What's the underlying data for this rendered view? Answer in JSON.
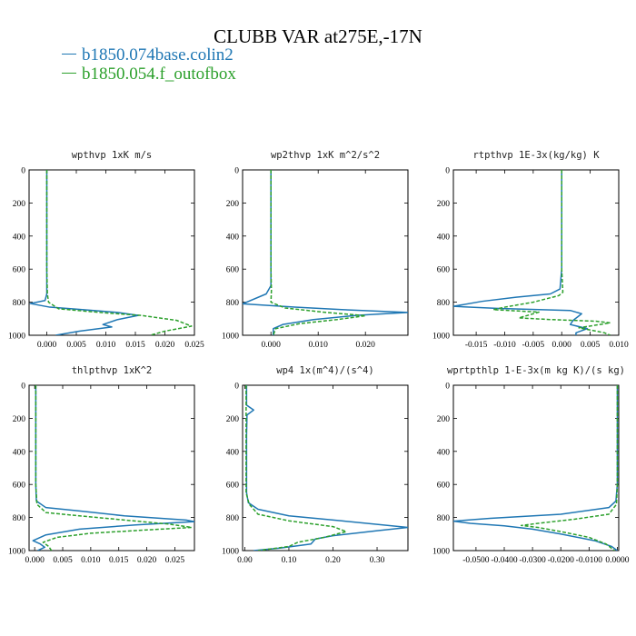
{
  "title": "CLUBB VAR at275E,-17N",
  "legend": [
    {
      "label": "b1850.074base.colin2",
      "color": "#1f77b4"
    },
    {
      "label": "b1850.054.f_outofbox",
      "color": "#2ca02c"
    }
  ],
  "chart_data": [
    {
      "type": "line",
      "title": "wpthvp   1xK m/s",
      "xlim": [
        -0.003,
        0.025
      ],
      "ylim": [
        1000,
        0
      ],
      "xticks": [
        "0.000",
        "0.005",
        "0.010",
        "0.015",
        "0.020",
        "0.025"
      ],
      "xtick_values": [
        0,
        0.005,
        0.01,
        0.015,
        0.02,
        0.025
      ],
      "yticks": [
        "0",
        "200",
        "400",
        "600",
        "800",
        "1000"
      ],
      "series": [
        {
          "name": "b1850.074base.colin2",
          "color": "#1f77b4",
          "dash": "",
          "points": [
            [
              0.0,
              0
            ],
            [
              0.0,
              200
            ],
            [
              0.0,
              400
            ],
            [
              0.0,
              600
            ],
            [
              0.0,
              750
            ],
            [
              -0.0003,
              790
            ],
            [
              -0.0028,
              808
            ],
            [
              0.0005,
              830
            ],
            [
              0.006,
              845
            ],
            [
              0.012,
              862
            ],
            [
              0.0155,
              880
            ],
            [
              0.012,
              905
            ],
            [
              0.0095,
              935
            ],
            [
              0.011,
              950
            ],
            [
              0.0055,
              975
            ],
            [
              0.0015,
              1000
            ]
          ]
        },
        {
          "name": "b1850.054.f_outofbox",
          "color": "#2ca02c",
          "dash": "4,2",
          "points": [
            [
              0.0,
              0
            ],
            [
              0.0,
              200
            ],
            [
              0.0,
              400
            ],
            [
              0.0,
              600
            ],
            [
              0.0001,
              750
            ],
            [
              0.0003,
              800
            ],
            [
              0.002,
              840
            ],
            [
              0.01,
              865
            ],
            [
              0.016,
              880
            ],
            [
              0.019,
              895
            ],
            [
              0.022,
              910
            ],
            [
              0.0245,
              945
            ],
            [
              0.02,
              975
            ],
            [
              0.0175,
              1000
            ]
          ]
        }
      ]
    },
    {
      "type": "line",
      "title": "wp2thvp   1xK m^2/s^2",
      "xlim": [
        -0.006,
        0.029
      ],
      "ylim": [
        1000,
        0
      ],
      "xticks": [
        "0.000",
        "0.010",
        "0.020"
      ],
      "xtick_values": [
        0,
        0.01,
        0.02
      ],
      "yticks": [
        "0",
        "200",
        "400",
        "600",
        "800",
        "1000"
      ],
      "series": [
        {
          "name": "b1850.074base.colin2",
          "color": "#1f77b4",
          "dash": "",
          "points": [
            [
              0.0,
              0
            ],
            [
              0.0,
              200
            ],
            [
              0.0,
              400
            ],
            [
              0.0,
              600
            ],
            [
              0.0,
              700
            ],
            [
              -0.001,
              750
            ],
            [
              -0.006,
              810
            ],
            [
              0.005,
              830
            ],
            [
              0.015,
              845
            ],
            [
              0.029,
              862
            ],
            [
              0.018,
              880
            ],
            [
              0.009,
              905
            ],
            [
              0.0025,
              935
            ],
            [
              0.0005,
              960
            ],
            [
              0.0005,
              1000
            ]
          ]
        },
        {
          "name": "b1850.054.f_outofbox",
          "color": "#2ca02c",
          "dash": "4,2",
          "points": [
            [
              0.0,
              0
            ],
            [
              0.0,
              200
            ],
            [
              0.0,
              400
            ],
            [
              0.0,
              600
            ],
            [
              0.0001,
              730
            ],
            [
              0.0,
              800
            ],
            [
              0.003,
              835
            ],
            [
              0.011,
              860
            ],
            [
              0.02,
              882
            ],
            [
              0.014,
              905
            ],
            [
              0.006,
              930
            ],
            [
              0.001,
              960
            ],
            [
              0.0005,
              1000
            ]
          ]
        }
      ]
    },
    {
      "type": "line",
      "title": "rtpthvp   1E-3x(kg/kg) K",
      "xlim": [
        -0.019,
        0.01
      ],
      "ylim": [
        1000,
        0
      ],
      "xticks": [
        "-0.015",
        "-0.010",
        "-0.005",
        "0.000",
        "0.005",
        "0.010"
      ],
      "xtick_values": [
        -0.015,
        -0.01,
        -0.005,
        0.0,
        0.005,
        0.01
      ],
      "yticks": [
        "0",
        "200",
        "400",
        "600",
        "800",
        "1000"
      ],
      "series": [
        {
          "name": "b1850.074base.colin2",
          "color": "#1f77b4",
          "dash": "",
          "points": [
            [
              0.0,
              0
            ],
            [
              0.0,
              200
            ],
            [
              0.0,
              400
            ],
            [
              0.0,
              600
            ],
            [
              -0.0003,
              720
            ],
            [
              -0.002,
              750
            ],
            [
              -0.008,
              770
            ],
            [
              -0.014,
              795
            ],
            [
              -0.019,
              825
            ],
            [
              -0.011,
              838
            ],
            [
              -0.004,
              845
            ],
            [
              0.0015,
              850
            ],
            [
              0.0035,
              870
            ],
            [
              0.002,
              910
            ],
            [
              0.0015,
              935
            ],
            [
              0.0045,
              960
            ],
            [
              0.0025,
              985
            ],
            [
              0.0025,
              1000
            ]
          ]
        },
        {
          "name": "b1850.054.f_outofbox",
          "color": "#2ca02c",
          "dash": "4,2",
          "points": [
            [
              0.0,
              0
            ],
            [
              0.0,
              200
            ],
            [
              0.0,
              400
            ],
            [
              0.0,
              600
            ],
            [
              0.0002,
              740
            ],
            [
              -0.0005,
              760
            ],
            [
              -0.005,
              800
            ],
            [
              -0.01,
              830
            ],
            [
              -0.012,
              845
            ],
            [
              -0.004,
              860
            ],
            [
              -0.006,
              880
            ],
            [
              -0.0075,
              895
            ],
            [
              -0.002,
              905
            ],
            [
              0.006,
              915
            ],
            [
              0.0085,
              925
            ],
            [
              0.003,
              955
            ],
            [
              0.0075,
              985
            ],
            [
              0.0085,
              1000
            ]
          ]
        }
      ]
    },
    {
      "type": "line",
      "title": "thlpthvp   1xK^2",
      "xlim": [
        -0.001,
        0.0285
      ],
      "ylim": [
        1000,
        0
      ],
      "xticks": [
        "0.000",
        "0.005",
        "0.010",
        "0.015",
        "0.020",
        "0.025"
      ],
      "xtick_values": [
        0,
        0.005,
        0.01,
        0.015,
        0.02,
        0.025
      ],
      "yticks": [
        "0",
        "200",
        "400",
        "600",
        "800",
        "1000"
      ],
      "series": [
        {
          "name": "b1850.074base.colin2",
          "color": "#1f77b4",
          "dash": "",
          "points": [
            [
              0.0002,
              0
            ],
            [
              0.0002,
              200
            ],
            [
              0.0002,
              400
            ],
            [
              0.0002,
              600
            ],
            [
              0.0003,
              700
            ],
            [
              0.002,
              740
            ],
            [
              0.008,
              760
            ],
            [
              0.016,
              790
            ],
            [
              0.027,
              815
            ],
            [
              0.0285,
              825
            ],
            [
              0.018,
              845
            ],
            [
              0.008,
              870
            ],
            [
              0.002,
              905
            ],
            [
              -0.0003,
              940
            ],
            [
              0.001,
              960
            ],
            [
              0.0018,
              980
            ],
            [
              0.0005,
              1000
            ]
          ]
        },
        {
          "name": "b1850.054.f_outofbox",
          "color": "#2ca02c",
          "dash": "4,2",
          "points": [
            [
              0.0002,
              0
            ],
            [
              0.0002,
              200
            ],
            [
              0.0002,
              400
            ],
            [
              0.0002,
              600
            ],
            [
              0.0004,
              720
            ],
            [
              0.002,
              770
            ],
            [
              0.008,
              790
            ],
            [
              0.016,
              815
            ],
            [
              0.024,
              840
            ],
            [
              0.028,
              860
            ],
            [
              0.02,
              875
            ],
            [
              0.01,
              895
            ],
            [
              0.004,
              920
            ],
            [
              0.0015,
              950
            ],
            [
              0.0025,
              975
            ],
            [
              0.003,
              1000
            ]
          ]
        }
      ]
    },
    {
      "type": "line",
      "title": "wp4   1x(m^4)/(s^4)",
      "xlim": [
        -0.005,
        0.37
      ],
      "ylim": [
        1000,
        0
      ],
      "xticks": [
        "0.00",
        "0.10",
        "0.20",
        "0.30"
      ],
      "xtick_values": [
        0,
        0.1,
        0.2,
        0.3
      ],
      "yticks": [
        "0",
        "200",
        "400",
        "600",
        "800",
        "1000"
      ],
      "series": [
        {
          "name": "b1850.074base.colin2",
          "color": "#1f77b4",
          "dash": "",
          "points": [
            [
              0.004,
              0
            ],
            [
              0.004,
              80
            ],
            [
              0.004,
              120
            ],
            [
              0.02,
              150
            ],
            [
              0.005,
              180
            ],
            [
              0.004,
              300
            ],
            [
              0.004,
              500
            ],
            [
              0.004,
              650
            ],
            [
              0.008,
              710
            ],
            [
              0.03,
              750
            ],
            [
              0.1,
              790
            ],
            [
              0.22,
              820
            ],
            [
              0.37,
              860
            ],
            [
              0.3,
              880
            ],
            [
              0.2,
              910
            ],
            [
              0.16,
              930
            ],
            [
              0.15,
              960
            ],
            [
              0.08,
              985
            ],
            [
              0.02,
              1000
            ]
          ]
        },
        {
          "name": "b1850.054.f_outofbox",
          "color": "#2ca02c",
          "dash": "4,2",
          "points": [
            [
              0.003,
              0
            ],
            [
              0.003,
              200
            ],
            [
              0.003,
              500
            ],
            [
              0.003,
              650
            ],
            [
              0.01,
              720
            ],
            [
              0.03,
              780
            ],
            [
              0.1,
              820
            ],
            [
              0.2,
              855
            ],
            [
              0.23,
              885
            ],
            [
              0.18,
              920
            ],
            [
              0.12,
              950
            ],
            [
              0.1,
              975
            ],
            [
              0.03,
              1000
            ]
          ]
        }
      ]
    },
    {
      "type": "line",
      "title": "wprtpthlp   1-E-3x(m kg K)/(s kg)",
      "xlim": [
        -0.058,
        0.0005
      ],
      "ylim": [
        1000,
        0
      ],
      "xticks": [
        "-0.0500",
        "-0.0400",
        "-0.0300",
        "-0.0200",
        "-0.0100",
        "0.0000"
      ],
      "xtick_values": [
        -0.05,
        -0.04,
        -0.03,
        -0.02,
        -0.01,
        0.0
      ],
      "yticks": [
        "0",
        "200",
        "400",
        "600",
        "800",
        "1000"
      ],
      "series": [
        {
          "name": "b1850.074base.colin2",
          "color": "#1f77b4",
          "dash": "",
          "points": [
            [
              0.0,
              0
            ],
            [
              0.0,
              200
            ],
            [
              0.0,
              400
            ],
            [
              0.0,
              600
            ],
            [
              -0.0005,
              700
            ],
            [
              -0.003,
              740
            ],
            [
              -0.02,
              780
            ],
            [
              -0.045,
              805
            ],
            [
              -0.058,
              822
            ],
            [
              -0.052,
              835
            ],
            [
              -0.04,
              850
            ],
            [
              -0.03,
              870
            ],
            [
              -0.02,
              900
            ],
            [
              -0.008,
              940
            ],
            [
              -0.002,
              975
            ],
            [
              0.0,
              1000
            ]
          ]
        },
        {
          "name": "b1850.054.f_outofbox",
          "color": "#2ca02c",
          "dash": "4,2",
          "points": [
            [
              0.0,
              0
            ],
            [
              0.0,
              200
            ],
            [
              0.0,
              400
            ],
            [
              0.0,
              600
            ],
            [
              -0.0003,
              720
            ],
            [
              -0.003,
              780
            ],
            [
              -0.015,
              810
            ],
            [
              -0.028,
              835
            ],
            [
              -0.034,
              848
            ],
            [
              -0.028,
              860
            ],
            [
              -0.02,
              885
            ],
            [
              -0.01,
              920
            ],
            [
              -0.004,
              960
            ],
            [
              -0.001,
              1000
            ]
          ]
        }
      ]
    }
  ]
}
